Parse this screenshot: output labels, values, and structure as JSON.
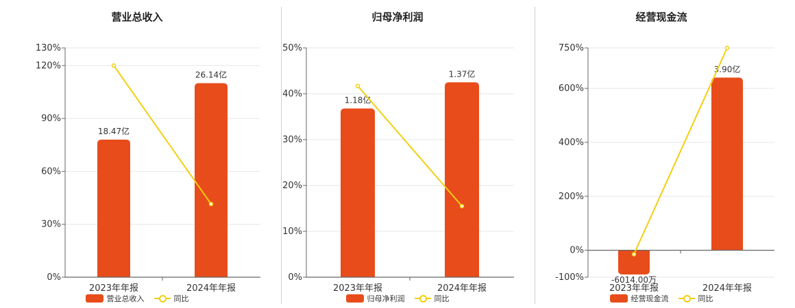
{
  "colors": {
    "bar": "#e84c1b",
    "line": "#f2cf0f"
  },
  "legend": {
    "bar_labels": [
      "营业总收入",
      "归母净利润",
      "经营现金流"
    ],
    "line_label": "同比"
  },
  "chart_data": [
    {
      "type": "bar",
      "title": "营业总收入",
      "categories": [
        "2023年年报",
        "2024年年报"
      ],
      "series": [
        {
          "name": "营业总收入",
          "type": "bar",
          "values": [
            18.47,
            26.14
          ],
          "unit": "亿",
          "labels": [
            "18.47亿",
            "26.14亿"
          ]
        },
        {
          "name": "同比",
          "type": "line",
          "values": [
            120,
            41.5
          ],
          "unit": "%"
        }
      ],
      "bar_values_on_right_axis_pct": [
        78,
        110
      ],
      "yaxis": {
        "ticks": [
          "0%",
          "30%",
          "60%",
          "90%",
          "120%",
          "130%"
        ],
        "tick_values": [
          0,
          30,
          60,
          90,
          120,
          130
        ],
        "ylim": [
          0,
          130
        ]
      },
      "grid": true
    },
    {
      "type": "bar",
      "title": "归母净利润",
      "categories": [
        "2023年年报",
        "2024年年报"
      ],
      "series": [
        {
          "name": "归母净利润",
          "type": "bar",
          "values": [
            1.18,
            1.37
          ],
          "unit": "亿",
          "labels": [
            "1.18亿",
            "1.37亿"
          ]
        },
        {
          "name": "同比",
          "type": "line",
          "values": [
            41.7,
            15.5
          ],
          "unit": "%"
        }
      ],
      "bar_values_on_right_axis_pct": [
        36.8,
        42.5
      ],
      "yaxis": {
        "ticks": [
          "0%",
          "10%",
          "20%",
          "30%",
          "40%",
          "50%"
        ],
        "tick_values": [
          0,
          10,
          20,
          30,
          40,
          50
        ],
        "ylim": [
          0,
          50
        ]
      },
      "grid": true
    },
    {
      "type": "bar",
      "title": "经营现金流",
      "categories": [
        "2023年年报",
        "2024年年报"
      ],
      "series": [
        {
          "name": "经营现金流",
          "type": "bar",
          "values": [
            -0.6014,
            3.9
          ],
          "unit": "亿",
          "labels": [
            "-6014.00万",
            "3.90亿"
          ]
        },
        {
          "name": "同比",
          "type": "line",
          "values": [
            -15,
            750
          ],
          "unit": "%"
        }
      ],
      "bar_values_on_right_axis_pct": [
        -90,
        640
      ],
      "yaxis": {
        "ticks": [
          "-100%",
          "0%",
          "200%",
          "400%",
          "600%",
          "750%"
        ],
        "tick_values": [
          -100,
          0,
          200,
          400,
          600,
          750
        ],
        "ylim": [
          -100,
          750
        ]
      },
      "grid": true
    }
  ]
}
